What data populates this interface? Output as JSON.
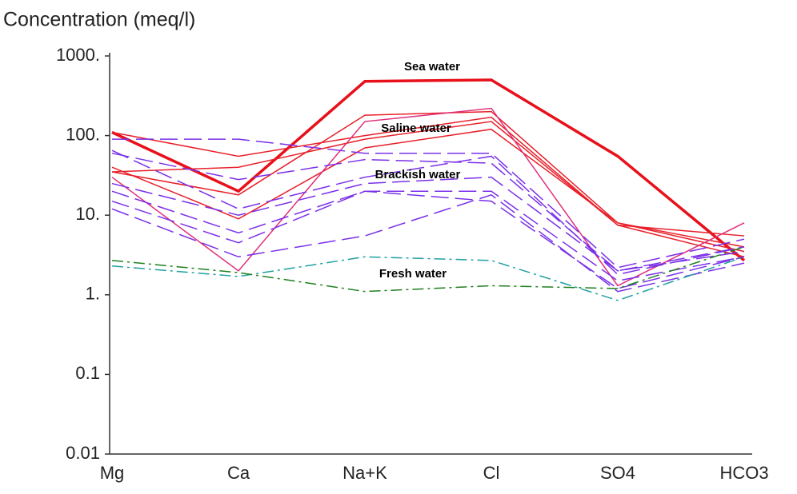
{
  "chart_data": {
    "type": "line",
    "title": "Concentration (meq/l)",
    "categories": [
      "Mg",
      "Ca",
      "Na+K",
      "Cl",
      "SO4",
      "HCO3"
    ],
    "log_scale": true,
    "ylim": [
      0.01,
      1000
    ],
    "yticks": [
      {
        "value": 1000,
        "label": "1000."
      },
      {
        "value": 100,
        "label": "100."
      },
      {
        "value": 10,
        "label": "10."
      },
      {
        "value": 1,
        "label": "1."
      },
      0.1,
      0.01
    ],
    "annotations": [
      "Sea water",
      "Saline water",
      "Brackish water",
      "Fresh water"
    ],
    "series": [
      {
        "color": "#e8101a",
        "style": "solid",
        "width": 3.5,
        "values": [
          110,
          20,
          480,
          500,
          55,
          2.7
        ]
      },
      {
        "color": "#e8202a",
        "style": "solid",
        "width": 1.5,
        "values": [
          110,
          55,
          100,
          170,
          7.5,
          5.5
        ]
      },
      {
        "color": "#e8202a",
        "style": "solid",
        "width": 1.5,
        "values": [
          35,
          18,
          180,
          200,
          8,
          4
        ]
      },
      {
        "color": "#e8202a",
        "style": "solid",
        "width": 1.5,
        "values": [
          40,
          9,
          70,
          120,
          8,
          3.5
        ]
      },
      {
        "color": "#e8202a",
        "style": "solid",
        "width": 1.5,
        "values": [
          35,
          40,
          90,
          150,
          7.5,
          3
        ]
      },
      {
        "color": "#e0307a",
        "style": "solid",
        "width": 1.5,
        "values": [
          30,
          2,
          150,
          220,
          1.3,
          8
        ]
      },
      {
        "color": "#7a30e8",
        "style": "dash",
        "width": 1.5,
        "values": [
          90,
          90,
          60,
          60,
          2.2,
          5
        ]
      },
      {
        "color": "#7a30e8",
        "style": "dash",
        "width": 1.5,
        "values": [
          60,
          28,
          50,
          45,
          2,
          4
        ]
      },
      {
        "color": "#7a30e8",
        "style": "dash",
        "width": 1.5,
        "values": [
          65,
          12,
          30,
          55,
          1.8,
          4
        ]
      },
      {
        "color": "#7a30e8",
        "style": "dash",
        "width": 1.5,
        "values": [
          25,
          10,
          25,
          30,
          2,
          3.5
        ]
      },
      {
        "color": "#7a30e8",
        "style": "dash",
        "width": 1.5,
        "values": [
          20,
          6,
          20,
          20,
          1.5,
          3
        ]
      },
      {
        "color": "#7a30e8",
        "style": "dash",
        "width": 1.5,
        "values": [
          15,
          4.5,
          20,
          15,
          1.2,
          3
        ]
      },
      {
        "color": "#7a30e8",
        "style": "dash",
        "width": 1.5,
        "values": [
          12,
          3,
          5.5,
          18,
          1.1,
          2.5
        ]
      },
      {
        "color": "#20a0a0",
        "style": "dashdot",
        "width": 1.5,
        "values": [
          2.3,
          1.7,
          3,
          2.7,
          0.85,
          3
        ]
      },
      {
        "color": "#208020",
        "style": "dashdot",
        "width": 1.5,
        "values": [
          2.7,
          1.9,
          1.1,
          1.3,
          1.2,
          4
        ]
      }
    ]
  }
}
